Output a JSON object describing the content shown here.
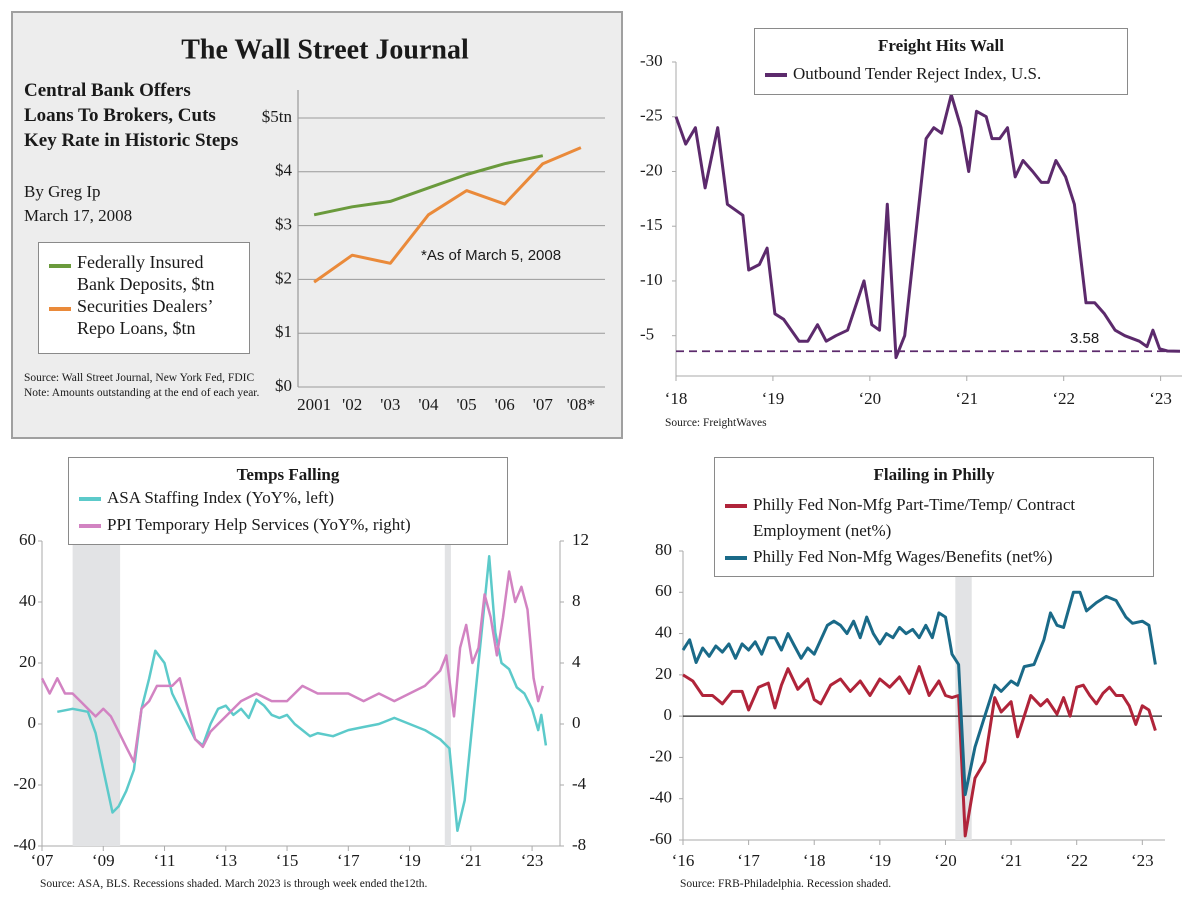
{
  "chart_data": [
    {
      "type": "line",
      "title": "The Wall Street Journal",
      "headline": "Central Bank Offers Loans To Brokers, Cuts Key Rate in Historic Steps",
      "byline": "By Greg Ip",
      "date": "March 17, 2008",
      "annotation": "*As of March 5, 2008",
      "source": "Source: Wall Street Journal, New York Fed, FDIC Note:  Amounts outstanding at the end of each year.",
      "categories": [
        "2001",
        "'02",
        "'03",
        "'04",
        "'05",
        "'06",
        "'07",
        "'08*"
      ],
      "series": [
        {
          "name": "Federally Insured Bank Deposits, $tn",
          "color": "#6a9a3c",
          "values": [
            3.2,
            3.35,
            3.45,
            3.7,
            3.95,
            4.15,
            4.3,
            null
          ]
        },
        {
          "name": "Securities Dealers’ Repo Loans, $tn",
          "color": "#ea8a3a",
          "values": [
            1.95,
            2.45,
            2.3,
            3.2,
            3.65,
            3.4,
            4.15,
            4.45
          ]
        }
      ],
      "ylim": [
        0,
        5
      ],
      "yticks": [
        {
          "value": 0,
          "label": "$0"
        },
        {
          "value": 1,
          "label": "$1"
        },
        {
          "value": 2,
          "label": "$2"
        },
        {
          "value": 3,
          "label": "$3"
        },
        {
          "value": 4,
          "label": "$4"
        },
        {
          "value": 5,
          "label": "$5tn"
        }
      ],
      "grid": true
    },
    {
      "type": "line",
      "title": "Freight Hits Wall",
      "source": "Source: FreightWaves",
      "series": [
        {
          "name": "Outbound Tender Reject Index, U.S.",
          "color": "#5c2a6c",
          "x": [
            2018.0,
            2018.1,
            2018.2,
            2018.3,
            2018.43,
            2018.53,
            2018.69,
            2018.75,
            2018.86,
            2018.94,
            2019.02,
            2019.11,
            2019.27,
            2019.36,
            2019.46,
            2019.55,
            2019.65,
            2019.77,
            2019.94,
            2020.02,
            2020.1,
            2020.18,
            2020.27,
            2020.36,
            2020.58,
            2020.66,
            2020.74,
            2020.84,
            2020.94,
            2021.02,
            2021.1,
            2021.2,
            2021.26,
            2021.34,
            2021.42,
            2021.5,
            2021.58,
            2021.68,
            2021.77,
            2021.84,
            2021.92,
            2022.02,
            2022.11,
            2022.23,
            2022.32,
            2022.42,
            2022.53,
            2022.63,
            2022.78,
            2022.86,
            2022.92,
            2022.99,
            2023.07,
            2023.2
          ],
          "values": [
            25,
            22.5,
            24,
            18.5,
            24,
            17,
            16,
            11,
            11.5,
            13,
            7,
            6.5,
            4.5,
            4.5,
            6,
            4.5,
            5,
            5.5,
            10,
            6,
            5.5,
            17,
            3,
            5,
            23,
            24,
            23.5,
            27,
            24,
            20,
            25.5,
            25,
            23,
            23,
            24,
            19.5,
            21,
            20,
            19,
            19,
            21,
            19.5,
            17,
            8,
            8,
            7,
            5.5,
            5,
            4.5,
            4,
            5.5,
            3.8,
            3.6,
            3.58
          ]
        }
      ],
      "reference_line": 3.58,
      "xlim": [
        2018,
        2023.2
      ],
      "xticks": [
        {
          "value": 2018,
          "label": "‘18"
        },
        {
          "value": 2019,
          "label": "‘19"
        },
        {
          "value": 2020,
          "label": "‘20"
        },
        {
          "value": 2021,
          "label": "‘21"
        },
        {
          "value": 2022,
          "label": "‘22"
        },
        {
          "value": 2023,
          "label": "‘23"
        }
      ],
      "ylim": [
        1.5,
        30
      ],
      "yticks": [
        {
          "value": 30,
          "label": "-30"
        },
        {
          "value": 25,
          "label": "-25"
        },
        {
          "value": 20,
          "label": "-20"
        },
        {
          "value": 15,
          "label": "-15"
        },
        {
          "value": 10,
          "label": "-10"
        },
        {
          "value": 5,
          "label": "-5"
        }
      ],
      "grid": false
    },
    {
      "type": "line",
      "title": "Temps Falling",
      "source": "Source: ASA, BLS. Recessions shaded. March 2023 is through week ended the12th.",
      "shaded": [
        [
          2008.0,
          2009.55
        ],
        [
          2020.15,
          2020.35
        ]
      ],
      "series": [
        {
          "name": "ASA Staffing Index (YoY%, left)",
          "color": "#5ccaca",
          "x": [
            2007.5,
            2008,
            2008.5,
            2008.75,
            2009,
            2009.3,
            2009.5,
            2009.75,
            2010,
            2010.25,
            2010.5,
            2010.7,
            2011,
            2011.25,
            2011.5,
            2011.75,
            2012,
            2012.25,
            2012.5,
            2012.75,
            2013,
            2013.25,
            2013.5,
            2013.75,
            2014,
            2014.25,
            2014.5,
            2014.75,
            2015,
            2015.25,
            2015.5,
            2015.75,
            2016,
            2016.5,
            2017,
            2017.5,
            2018,
            2018.5,
            2019,
            2019.5,
            2020,
            2020.3,
            2020.56,
            2020.8,
            2021.1,
            2021.4,
            2021.6,
            2021.8,
            2022,
            2022.25,
            2022.5,
            2022.75,
            2023,
            2023.2,
            2023.3,
            2023.45
          ],
          "values": [
            4,
            5,
            4,
            -3,
            -15,
            -29,
            -27,
            -22,
            -15,
            5,
            15,
            24,
            20,
            10,
            5,
            0,
            -5,
            -7,
            0,
            5,
            6,
            3,
            5,
            2,
            8,
            6,
            3,
            2,
            3,
            0,
            -2,
            -4,
            -3,
            -4,
            -2,
            -1,
            0,
            2,
            0,
            -2,
            -5,
            -8,
            -35,
            -25,
            5,
            35,
            55,
            30,
            20,
            18,
            12,
            10,
            5,
            -2,
            3,
            -7
          ]
        },
        {
          "name": "PPI Temporary Help Services (YoY%, right)",
          "color": "#d283c2",
          "axis": "y2",
          "x": [
            2007,
            2007.25,
            2007.5,
            2007.75,
            2008,
            2008.25,
            2008.5,
            2008.75,
            2009,
            2009.25,
            2009.5,
            2009.75,
            2010,
            2010.25,
            2010.5,
            2010.75,
            2011,
            2011.25,
            2011.5,
            2011.75,
            2012,
            2012.25,
            2012.5,
            2012.75,
            2013,
            2013.5,
            2014,
            2014.5,
            2015,
            2015.5,
            2016,
            2016.5,
            2017,
            2017.5,
            2018,
            2018.5,
            2019,
            2019.5,
            2020,
            2020.2,
            2020.45,
            2020.65,
            2020.85,
            2021.05,
            2021.25,
            2021.45,
            2021.65,
            2021.85,
            2022.05,
            2022.25,
            2022.45,
            2022.65,
            2022.85,
            2023.05,
            2023.2,
            2023.35
          ],
          "values": [
            3,
            2,
            3,
            2,
            2,
            1.5,
            1,
            0.5,
            1,
            0.5,
            -0.5,
            -1.5,
            -2.5,
            1,
            1.5,
            2.5,
            2.5,
            2.5,
            3,
            1,
            -1,
            -1.5,
            -0.5,
            0,
            0.5,
            1.5,
            2,
            1.5,
            1.5,
            2.5,
            2,
            2,
            2,
            1.5,
            2,
            1.5,
            2,
            2.5,
            3.5,
            4.5,
            0.5,
            5,
            6.5,
            4,
            5,
            8.5,
            7,
            4.5,
            7,
            10,
            8,
            9,
            7.5,
            3,
            1.5,
            2.5
          ]
        }
      ],
      "xlim": [
        2007,
        2023.65
      ],
      "xticks": [
        {
          "value": 2007,
          "label": "‘07"
        },
        {
          "value": 2009,
          "label": "‘09"
        },
        {
          "value": 2011,
          "label": "‘11"
        },
        {
          "value": 2013,
          "label": "‘13"
        },
        {
          "value": 2015,
          "label": "‘15"
        },
        {
          "value": 2017,
          "label": "‘17"
        },
        {
          "value": 2019,
          "label": "‘19"
        },
        {
          "value": 2021,
          "label": "‘21"
        },
        {
          "value": 2023,
          "label": "‘23"
        }
      ],
      "ylim": [
        -40,
        60
      ],
      "yticks": [
        -40,
        -20,
        0,
        20,
        40,
        60
      ],
      "y2lim": [
        -8,
        12
      ],
      "y2ticks": [
        -8,
        -4,
        0,
        4,
        8,
        12
      ],
      "grid": false
    },
    {
      "type": "line",
      "title": "Flailing in Philly",
      "source": "Source: FRB-Philadelphia. Recession shaded.",
      "shaded": [
        [
          2020.15,
          2020.4
        ]
      ],
      "series": [
        {
          "name": "Philly Fed Non-Mfg Part-Time/Temp/ Contract Employment (net%)",
          "color": "#b0243a",
          "x": [
            2016,
            2016.15,
            2016.3,
            2016.45,
            2016.6,
            2016.75,
            2016.9,
            2017,
            2017.15,
            2017.3,
            2017.4,
            2017.5,
            2017.6,
            2017.75,
            2017.9,
            2018,
            2018.1,
            2018.25,
            2018.4,
            2018.55,
            2018.7,
            2018.85,
            2019,
            2019.15,
            2019.3,
            2019.45,
            2019.6,
            2019.75,
            2019.9,
            2020,
            2020.1,
            2020.2,
            2020.3,
            2020.45,
            2020.6,
            2020.75,
            2020.85,
            2021,
            2021.1,
            2021.3,
            2021.45,
            2021.55,
            2021.7,
            2021.8,
            2021.9,
            2022,
            2022.1,
            2022.2,
            2022.3,
            2022.4,
            2022.5,
            2022.6,
            2022.7,
            2022.8,
            2022.9,
            2023,
            2023.1,
            2023.2
          ],
          "values": [
            20,
            17,
            10,
            10,
            6,
            12,
            12,
            3,
            14,
            16,
            4,
            15,
            23,
            13,
            18,
            8,
            6,
            15,
            18,
            12,
            17,
            10,
            18,
            14,
            19,
            11,
            24,
            10,
            17,
            10,
            9,
            10,
            -58,
            -30,
            -22,
            9,
            2,
            7,
            -10,
            10,
            5,
            8,
            1,
            9,
            0,
            14,
            15,
            10,
            6,
            11,
            14,
            10,
            10,
            5,
            -4,
            5,
            3,
            -7
          ]
        },
        {
          "name": "Philly Fed Non-Mfg Wages/Benefits (net%)",
          "color": "#1a6a88",
          "x": [
            2016,
            2016.1,
            2016.2,
            2016.3,
            2016.4,
            2016.5,
            2016.6,
            2016.7,
            2016.8,
            2016.9,
            2017,
            2017.1,
            2017.2,
            2017.3,
            2017.4,
            2017.5,
            2017.6,
            2017.7,
            2017.8,
            2017.9,
            2018,
            2018.1,
            2018.2,
            2018.3,
            2018.4,
            2018.5,
            2018.6,
            2018.7,
            2018.8,
            2018.9,
            2019,
            2019.1,
            2019.2,
            2019.3,
            2019.4,
            2019.5,
            2019.6,
            2019.7,
            2019.8,
            2019.9,
            2020,
            2020.1,
            2020.2,
            2020.3,
            2020.45,
            2020.6,
            2020.75,
            2020.85,
            2021,
            2021.1,
            2021.2,
            2021.35,
            2021.5,
            2021.6,
            2021.7,
            2021.8,
            2021.95,
            2022.05,
            2022.15,
            2022.3,
            2022.45,
            2022.6,
            2022.75,
            2022.85,
            2023,
            2023.1,
            2023.2
          ],
          "values": [
            32,
            37,
            26,
            33,
            29,
            34,
            31,
            35,
            28,
            35,
            32,
            36,
            30,
            38,
            38,
            32,
            40,
            34,
            28,
            33,
            30,
            37,
            44,
            46,
            44,
            40,
            46,
            38,
            48,
            40,
            35,
            40,
            38,
            43,
            40,
            42,
            38,
            44,
            38,
            50,
            48,
            30,
            25,
            -38,
            -15,
            0,
            15,
            12,
            17,
            15,
            24,
            25,
            37,
            50,
            44,
            43,
            60,
            60,
            51,
            55,
            58,
            56,
            48,
            45,
            46,
            44,
            25
          ]
        }
      ],
      "xlim": [
        2016,
        2023.3
      ],
      "xticks": [
        {
          "value": 2016,
          "label": "‘16"
        },
        {
          "value": 2017,
          "label": "‘17"
        },
        {
          "value": 2018,
          "label": "‘18"
        },
        {
          "value": 2019,
          "label": "‘19"
        },
        {
          "value": 2020,
          "label": "‘20"
        },
        {
          "value": 2021,
          "label": "‘21"
        },
        {
          "value": 2022,
          "label": "‘22"
        },
        {
          "value": 2023,
          "label": "‘23"
        }
      ],
      "ylim": [
        -60,
        80
      ],
      "yticks": [
        -60,
        -40,
        -20,
        0,
        20,
        40,
        60,
        80
      ],
      "grid": false
    }
  ]
}
